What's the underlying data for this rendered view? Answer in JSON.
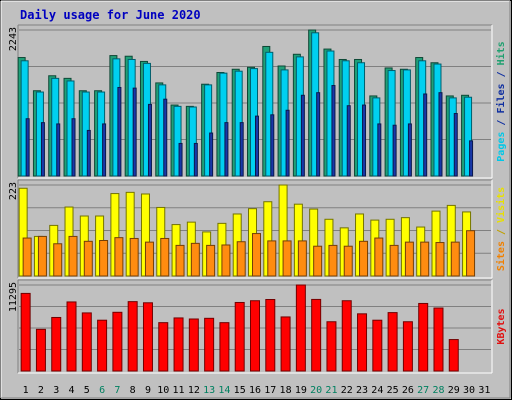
{
  "chart_data": {
    "type": "bar",
    "title": "Daily usage for June 2020",
    "categories": [
      "1",
      "2",
      "3",
      "4",
      "5",
      "6",
      "7",
      "8",
      "9",
      "10",
      "11",
      "12",
      "13",
      "14",
      "15",
      "16",
      "17",
      "18",
      "19",
      "20",
      "21",
      "22",
      "23",
      "24",
      "25",
      "26",
      "27",
      "28",
      "29",
      "30",
      "31"
    ],
    "weekend_days": [
      "6",
      "7",
      "13",
      "14",
      "20",
      "21",
      "27",
      "28"
    ],
    "panels": [
      {
        "id": "pages-files-hits",
        "ymax_label": "2243",
        "ymax": 2243,
        "right_label_parts": [
          {
            "text": "Pages",
            "color": "#00c8e8"
          },
          {
            "text": " / ",
            "color": "#1030a0"
          },
          {
            "text": "Files",
            "color": "#1030a0"
          },
          {
            "text": " / ",
            "color": "#1030a0"
          },
          {
            "text": "Hits",
            "color": "#20a070"
          }
        ],
        "series": [
          {
            "name": "Hits",
            "color": "#20a078",
            "values": [
              1820,
              1310,
              1540,
              1500,
              1310,
              1310,
              1850,
              1840,
              1760,
              1430,
              1090,
              1070,
              1410,
              1590,
              1640,
              1670,
              1990,
              1690,
              1870,
              2243,
              1950,
              1790,
              1790,
              1230,
              1660,
              1640,
              1820,
              1740,
              1230,
              1240,
              0
            ]
          },
          {
            "name": "Files",
            "color": "#00d0f0",
            "values": [
              1770,
              1290,
              1500,
              1460,
              1290,
              1290,
              1800,
              1790,
              1730,
              1400,
              1070,
              1060,
              1400,
              1580,
              1610,
              1650,
              1900,
              1630,
              1830,
              2200,
              1920,
              1770,
              1740,
              1200,
              1620,
              1630,
              1770,
              1720,
              1200,
              1210,
              0
            ]
          },
          {
            "name": "Pages",
            "color": "#1838a8",
            "values": [
              880,
              820,
              800,
              880,
              700,
              800,
              1360,
              1350,
              1100,
              1180,
              500,
              500,
              660,
              820,
              820,
              920,
              940,
              1010,
              1240,
              1280,
              1390,
              1080,
              1090,
              800,
              780,
              800,
              1260,
              1280,
              960,
              540,
              0
            ]
          }
        ]
      },
      {
        "id": "sites-visits",
        "ymax_label": "223",
        "ymax": 223,
        "right_label_parts": [
          {
            "text": "Sites",
            "color": "#f08000"
          },
          {
            "text": " / ",
            "color": "#c0a000"
          },
          {
            "text": "Visits",
            "color": "#e8e000"
          }
        ],
        "series": [
          {
            "name": "Visits",
            "color": "#ffff00",
            "values": [
              215,
              97,
              124,
              169,
              147,
              147,
              202,
              205,
              201,
              168,
              126,
              132,
              108,
              129,
              152,
              165,
              182,
              223,
              176,
              164,
              139,
              118,
              152,
              137,
              139,
              143,
              120,
              159,
              173,
              157,
              0
            ]
          },
          {
            "name": "Sites",
            "color": "#ff8c10",
            "values": [
              93,
              97,
              79,
              97,
              85,
              87,
              94,
              92,
              83,
              92,
              75,
              80,
              75,
              76,
              84,
              104,
              86,
              86,
              86,
              73,
              75,
              73,
              85,
              93,
              75,
              83,
              83,
              82,
              83,
              111,
              0
            ]
          }
        ]
      },
      {
        "id": "kbytes",
        "ymax_label": "11295",
        "ymax": 11295,
        "right_label_parts": [
          {
            "text": "KBytes",
            "color": "#e01010"
          }
        ],
        "series": [
          {
            "name": "KBytes",
            "color": "#ff0000",
            "values": [
              10190,
              5470,
              7030,
              9070,
              7630,
              6670,
              7710,
              9110,
              8960,
              6350,
              6970,
              6830,
              6920,
              6350,
              9000,
              9230,
              9390,
              7100,
              11295,
              9400,
              6470,
              9230,
              7510,
              6670,
              7670,
              6470,
              8870,
              8270,
              4130,
              0,
              0
            ]
          }
        ]
      }
    ]
  }
}
